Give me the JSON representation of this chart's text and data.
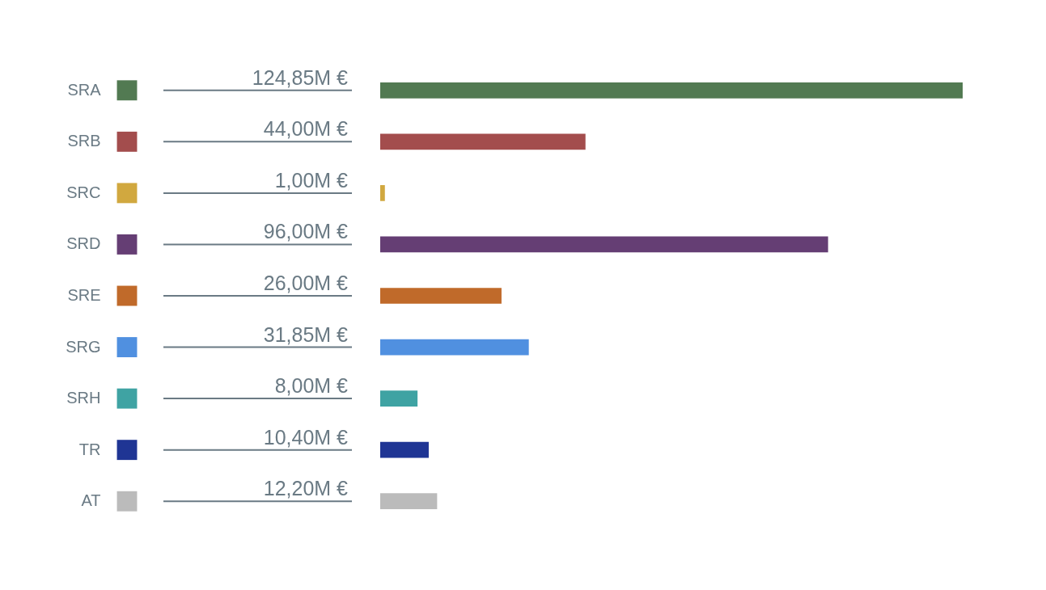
{
  "chart_data": {
    "type": "bar",
    "orientation": "horizontal",
    "categories": [
      "SRA",
      "SRB",
      "SRC",
      "SRD",
      "SRE",
      "SRG",
      "SRH",
      "TR",
      "AT"
    ],
    "values": [
      124.85,
      44.0,
      1.0,
      96.0,
      26.0,
      31.85,
      8.0,
      10.4,
      12.2
    ],
    "value_labels": [
      "124,85M €",
      "44,00M €",
      "1,00M €",
      "96,00M €",
      "26,00M €",
      "31,85M €",
      "8,00M €",
      "10,40M €",
      "12,20M €"
    ],
    "colors": [
      "#527a52",
      "#a34d4d",
      "#d1a83f",
      "#653e74",
      "#c06a2a",
      "#5090e0",
      "#3fa3a3",
      "#1f3594",
      "#bbbbbb"
    ]
  }
}
